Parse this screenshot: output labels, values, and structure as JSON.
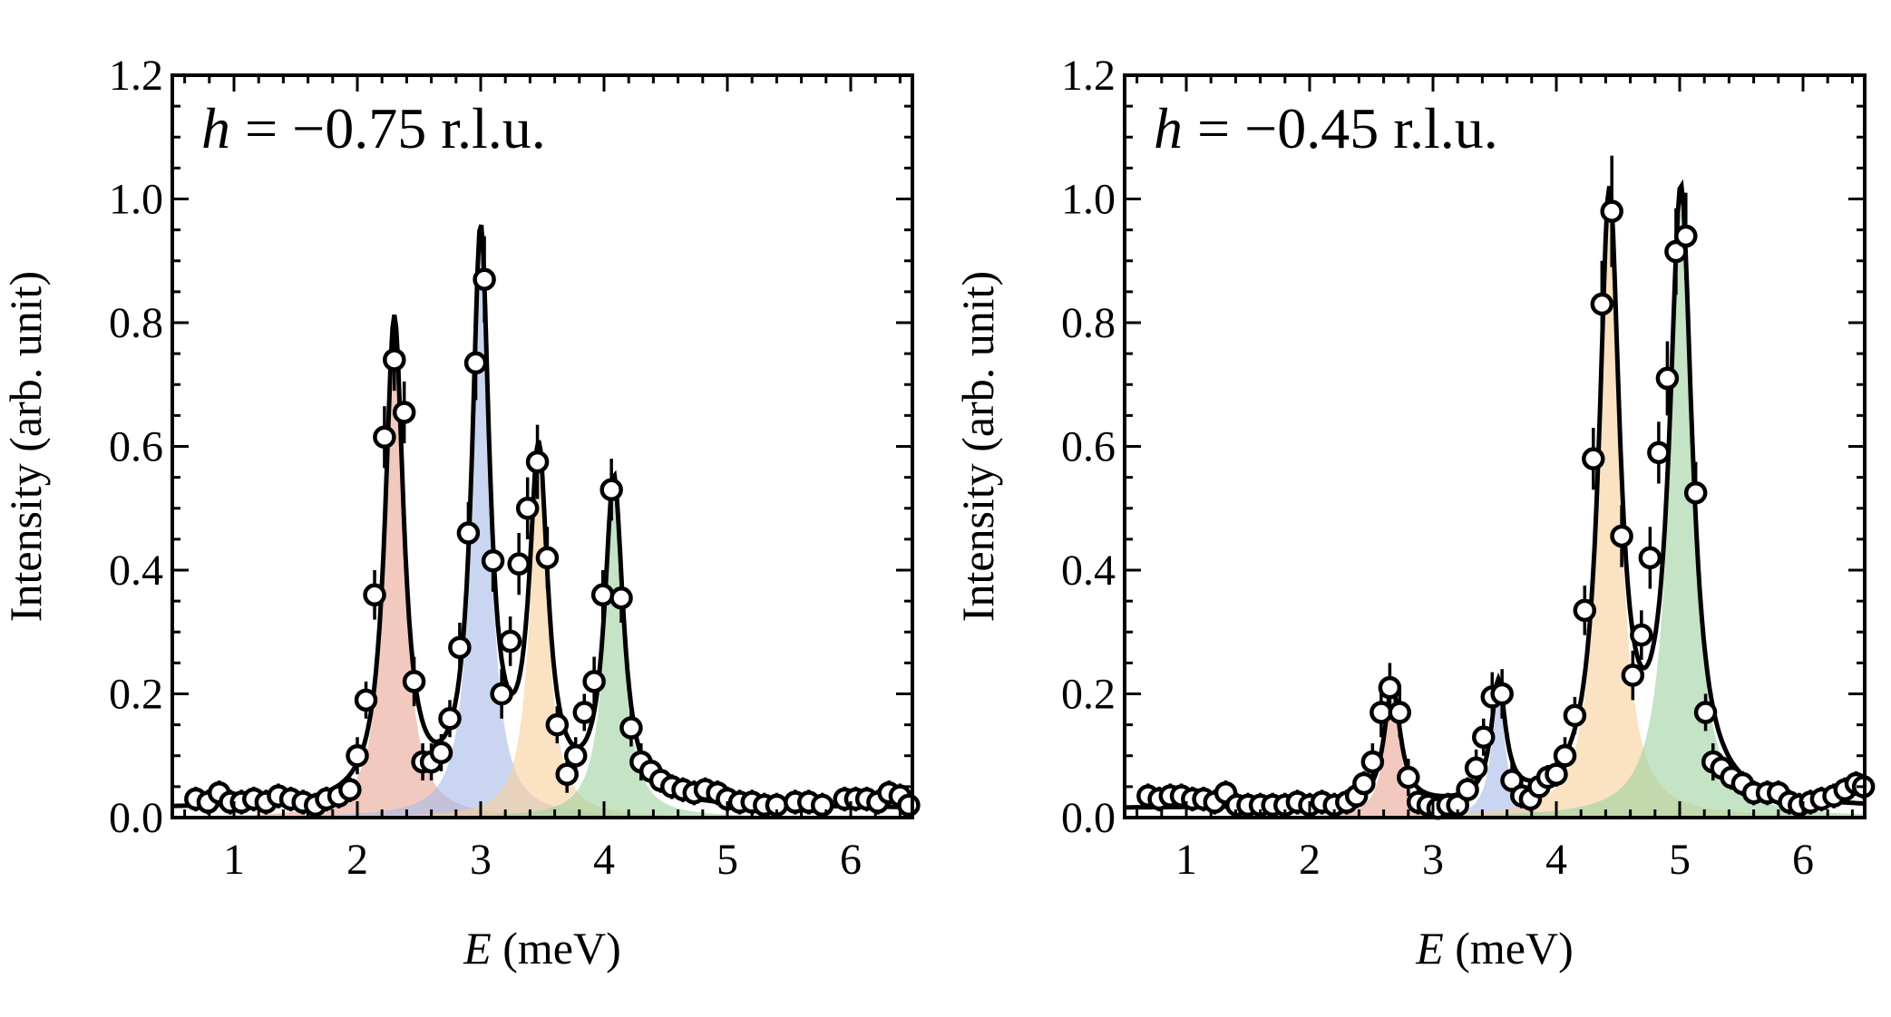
{
  "chart_data": [
    {
      "type": "scatter",
      "label_var": "h",
      "label_eq": "=",
      "label_value": "−0.75",
      "label_unit": "r.l.u.",
      "xlabel_var": "E",
      "xlabel_unit": "(meV)",
      "ylabel": "Intensity (arb. unit)",
      "xlim": [
        0.5,
        6.5
      ],
      "ylim": [
        0.0,
        1.2
      ],
      "xticks": [
        1,
        2,
        3,
        4,
        5,
        6
      ],
      "xtick_labels": [
        "1",
        "2",
        "3",
        "4",
        "5",
        "6"
      ],
      "yticks": [
        0.0,
        0.2,
        0.4,
        0.6,
        0.8,
        1.0,
        1.2
      ],
      "ytick_labels": [
        "0.0",
        "0.2",
        "0.4",
        "0.6",
        "0.8",
        "1.0",
        "1.2"
      ],
      "background": 0.015,
      "peaks": [
        {
          "name": "peak-1",
          "center": 2.3,
          "height": 0.78,
          "hwhm": 0.09,
          "color": "#e8a898"
        },
        {
          "name": "peak-2",
          "center": 3.0,
          "height": 0.91,
          "hwhm": 0.085,
          "color": "#a9bde8"
        },
        {
          "name": "peak-3",
          "center": 3.47,
          "height": 0.55,
          "hwhm": 0.09,
          "color": "#f7d09c"
        },
        {
          "name": "peak-4",
          "center": 4.08,
          "height": 0.52,
          "hwhm": 0.09,
          "color": "#9fd4a2"
        }
      ],
      "points": [
        [
          0.69,
          0.03,
          0.02
        ],
        [
          0.79,
          0.025,
          0.02
        ],
        [
          0.88,
          0.04,
          0.02
        ],
        [
          0.97,
          0.025,
          0.02
        ],
        [
          1.06,
          0.025,
          0.02
        ],
        [
          1.16,
          0.03,
          0.02
        ],
        [
          1.26,
          0.025,
          0.02
        ],
        [
          1.36,
          0.035,
          0.02
        ],
        [
          1.46,
          0.03,
          0.02
        ],
        [
          1.56,
          0.025,
          0.02
        ],
        [
          1.66,
          0.02,
          0.02
        ],
        [
          1.75,
          0.03,
          0.02
        ],
        [
          1.85,
          0.035,
          0.02
        ],
        [
          1.94,
          0.045,
          0.02
        ],
        [
          2.0,
          0.1,
          0.03
        ],
        [
          2.07,
          0.19,
          0.03
        ],
        [
          2.14,
          0.36,
          0.04
        ],
        [
          2.22,
          0.615,
          0.05
        ],
        [
          2.3,
          0.74,
          0.05
        ],
        [
          2.38,
          0.655,
          0.05
        ],
        [
          2.46,
          0.22,
          0.04
        ],
        [
          2.53,
          0.09,
          0.03
        ],
        [
          2.6,
          0.09,
          0.03
        ],
        [
          2.68,
          0.105,
          0.03
        ],
        [
          2.75,
          0.16,
          0.03
        ],
        [
          2.83,
          0.275,
          0.04
        ],
        [
          2.9,
          0.46,
          0.05
        ],
        [
          2.96,
          0.735,
          0.06
        ],
        [
          3.03,
          0.87,
          0.07
        ],
        [
          3.1,
          0.415,
          0.05
        ],
        [
          3.17,
          0.2,
          0.04
        ],
        [
          3.24,
          0.285,
          0.04
        ],
        [
          3.31,
          0.41,
          0.05
        ],
        [
          3.38,
          0.5,
          0.05
        ],
        [
          3.46,
          0.575,
          0.06
        ],
        [
          3.54,
          0.42,
          0.05
        ],
        [
          3.62,
          0.15,
          0.03
        ],
        [
          3.7,
          0.07,
          0.03
        ],
        [
          3.77,
          0.1,
          0.03
        ],
        [
          3.84,
          0.17,
          0.03
        ],
        [
          3.92,
          0.22,
          0.04
        ],
        [
          3.99,
          0.36,
          0.04
        ],
        [
          4.06,
          0.53,
          0.05
        ],
        [
          4.14,
          0.355,
          0.04
        ],
        [
          4.22,
          0.145,
          0.03
        ],
        [
          4.3,
          0.09,
          0.03
        ],
        [
          4.38,
          0.075,
          0.02
        ],
        [
          4.46,
          0.06,
          0.02
        ],
        [
          4.55,
          0.05,
          0.02
        ],
        [
          4.64,
          0.045,
          0.02
        ],
        [
          4.73,
          0.04,
          0.02
        ],
        [
          4.82,
          0.045,
          0.02
        ],
        [
          4.92,
          0.04,
          0.02
        ],
        [
          5.0,
          0.03,
          0.02
        ],
        [
          5.1,
          0.025,
          0.02
        ],
        [
          5.2,
          0.025,
          0.02
        ],
        [
          5.3,
          0.02,
          0.02
        ],
        [
          5.4,
          0.02,
          0.02
        ],
        [
          5.55,
          0.025,
          0.02
        ],
        [
          5.66,
          0.025,
          0.02
        ],
        [
          5.77,
          0.02,
          0.02
        ],
        [
          5.95,
          0.03,
          0.02
        ],
        [
          6.04,
          0.03,
          0.02
        ],
        [
          6.13,
          0.03,
          0.02
        ],
        [
          6.22,
          0.025,
          0.02
        ],
        [
          6.31,
          0.04,
          0.02
        ],
        [
          6.4,
          0.035,
          0.02
        ],
        [
          6.47,
          0.02,
          0.02
        ]
      ]
    },
    {
      "type": "scatter",
      "label_var": "h",
      "label_eq": "=",
      "label_value": "−0.45",
      "label_unit": "r.l.u.",
      "xlabel_var": "E",
      "xlabel_unit": "(meV)",
      "ylabel": "Intensity (arb. unit)",
      "xlim": [
        0.5,
        6.5
      ],
      "ylim": [
        0.0,
        1.2
      ],
      "xticks": [
        1,
        2,
        3,
        4,
        5,
        6
      ],
      "xtick_labels": [
        "1",
        "2",
        "3",
        "4",
        "5",
        "6"
      ],
      "yticks": [
        0.0,
        0.2,
        0.4,
        0.6,
        0.8,
        1.0,
        1.2
      ],
      "ytick_labels": [
        "0.0",
        "0.2",
        "0.4",
        "0.6",
        "0.8",
        "1.0",
        "1.2"
      ],
      "background": 0.015,
      "peaks": [
        {
          "name": "peak-1",
          "center": 2.67,
          "height": 0.19,
          "hwhm": 0.08,
          "color": "#e8a898"
        },
        {
          "name": "peak-2",
          "center": 3.53,
          "height": 0.19,
          "hwhm": 0.07,
          "color": "#a9bde8"
        },
        {
          "name": "peak-3",
          "center": 4.43,
          "height": 0.97,
          "hwhm": 0.1,
          "color": "#f7d09c"
        },
        {
          "name": "peak-4",
          "center": 5.01,
          "height": 0.98,
          "hwhm": 0.11,
          "color": "#9fd4a2"
        }
      ],
      "points": [
        [
          0.69,
          0.035,
          0.02
        ],
        [
          0.78,
          0.03,
          0.02
        ],
        [
          0.87,
          0.035,
          0.02
        ],
        [
          0.96,
          0.035,
          0.02
        ],
        [
          1.05,
          0.03,
          0.02
        ],
        [
          1.14,
          0.03,
          0.02
        ],
        [
          1.23,
          0.025,
          0.02
        ],
        [
          1.32,
          0.04,
          0.02
        ],
        [
          1.41,
          0.02,
          0.02
        ],
        [
          1.5,
          0.02,
          0.02
        ],
        [
          1.6,
          0.02,
          0.02
        ],
        [
          1.7,
          0.02,
          0.02
        ],
        [
          1.8,
          0.02,
          0.02
        ],
        [
          1.9,
          0.025,
          0.02
        ],
        [
          2.0,
          0.02,
          0.02
        ],
        [
          2.1,
          0.025,
          0.02
        ],
        [
          2.2,
          0.02,
          0.02
        ],
        [
          2.3,
          0.025,
          0.02
        ],
        [
          2.38,
          0.035,
          0.02
        ],
        [
          2.44,
          0.055,
          0.02
        ],
        [
          2.51,
          0.09,
          0.03
        ],
        [
          2.58,
          0.17,
          0.04
        ],
        [
          2.65,
          0.21,
          0.04
        ],
        [
          2.73,
          0.17,
          0.04
        ],
        [
          2.8,
          0.065,
          0.03
        ],
        [
          2.88,
          0.025,
          0.02
        ],
        [
          2.96,
          0.02,
          0.02
        ],
        [
          3.04,
          0.015,
          0.02
        ],
        [
          3.12,
          0.02,
          0.02
        ],
        [
          3.2,
          0.02,
          0.02
        ],
        [
          3.28,
          0.045,
          0.02
        ],
        [
          3.35,
          0.08,
          0.03
        ],
        [
          3.41,
          0.13,
          0.03
        ],
        [
          3.48,
          0.195,
          0.04
        ],
        [
          3.56,
          0.2,
          0.04
        ],
        [
          3.64,
          0.06,
          0.03
        ],
        [
          3.72,
          0.035,
          0.02
        ],
        [
          3.79,
          0.03,
          0.02
        ],
        [
          3.86,
          0.05,
          0.02
        ],
        [
          3.93,
          0.065,
          0.02
        ],
        [
          4.0,
          0.07,
          0.02
        ],
        [
          4.07,
          0.1,
          0.03
        ],
        [
          4.15,
          0.165,
          0.03
        ],
        [
          4.23,
          0.335,
          0.04
        ],
        [
          4.3,
          0.58,
          0.05
        ],
        [
          4.37,
          0.83,
          0.07
        ],
        [
          4.45,
          0.98,
          0.09
        ],
        [
          4.53,
          0.455,
          0.05
        ],
        [
          4.62,
          0.23,
          0.04
        ],
        [
          4.69,
          0.295,
          0.04
        ],
        [
          4.76,
          0.42,
          0.05
        ],
        [
          4.83,
          0.59,
          0.05
        ],
        [
          4.9,
          0.71,
          0.06
        ],
        [
          4.97,
          0.915,
          0.07
        ],
        [
          5.05,
          0.94,
          0.07
        ],
        [
          5.13,
          0.525,
          0.05
        ],
        [
          5.21,
          0.17,
          0.03
        ],
        [
          5.27,
          0.09,
          0.03
        ],
        [
          5.34,
          0.08,
          0.02
        ],
        [
          5.42,
          0.065,
          0.02
        ],
        [
          5.51,
          0.055,
          0.02
        ],
        [
          5.6,
          0.04,
          0.02
        ],
        [
          5.71,
          0.04,
          0.02
        ],
        [
          5.8,
          0.04,
          0.02
        ],
        [
          5.89,
          0.025,
          0.02
        ],
        [
          5.97,
          0.02,
          0.02
        ],
        [
          6.06,
          0.025,
          0.02
        ],
        [
          6.15,
          0.03,
          0.02
        ],
        [
          6.25,
          0.035,
          0.02
        ],
        [
          6.34,
          0.045,
          0.02
        ],
        [
          6.43,
          0.055,
          0.02
        ],
        [
          6.49,
          0.05,
          0.02
        ]
      ]
    }
  ]
}
